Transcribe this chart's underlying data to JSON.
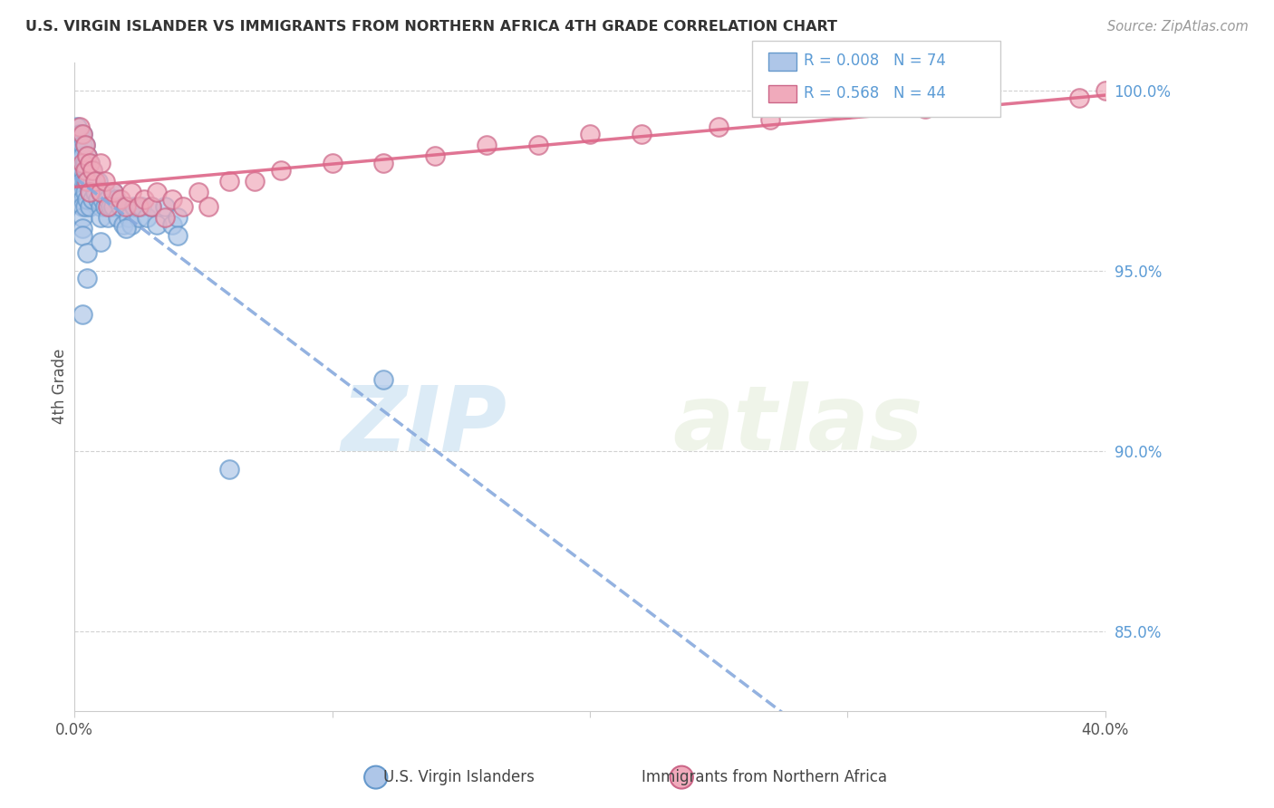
{
  "title": "U.S. VIRGIN ISLANDER VS IMMIGRANTS FROM NORTHERN AFRICA 4TH GRADE CORRELATION CHART",
  "source": "Source: ZipAtlas.com",
  "ylabel": "4th Grade",
  "xlim": [
    0.0,
    0.4
  ],
  "ylim": [
    0.828,
    1.008
  ],
  "yticks": [
    0.85,
    0.9,
    0.95,
    1.0
  ],
  "ytick_labels": [
    "85.0%",
    "90.0%",
    "95.0%",
    "100.0%"
  ],
  "blue_R": 0.008,
  "blue_N": 74,
  "pink_R": 0.568,
  "pink_N": 44,
  "blue_color": "#aec6e8",
  "pink_color": "#f0aabb",
  "blue_edge_color": "#6699cc",
  "pink_edge_color": "#cc6688",
  "blue_trend_color": "#88aadd",
  "pink_trend_color": "#dd6688",
  "legend_label_blue": "U.S. Virgin Islanders",
  "legend_label_pink": "Immigrants from Northern Africa",
  "blue_x": [
    0.001,
    0.001,
    0.001,
    0.002,
    0.002,
    0.002,
    0.002,
    0.002,
    0.003,
    0.003,
    0.003,
    0.003,
    0.003,
    0.003,
    0.003,
    0.003,
    0.003,
    0.003,
    0.003,
    0.004,
    0.004,
    0.004,
    0.004,
    0.004,
    0.005,
    0.005,
    0.005,
    0.005,
    0.006,
    0.006,
    0.006,
    0.006,
    0.007,
    0.007,
    0.007,
    0.008,
    0.008,
    0.009,
    0.009,
    0.01,
    0.01,
    0.01,
    0.011,
    0.012,
    0.012,
    0.013,
    0.013,
    0.014,
    0.015,
    0.015,
    0.016,
    0.017,
    0.018,
    0.019,
    0.02,
    0.021,
    0.022,
    0.023,
    0.025,
    0.026,
    0.028,
    0.03,
    0.032,
    0.035,
    0.038,
    0.04,
    0.005,
    0.01,
    0.02,
    0.04,
    0.003,
    0.005,
    0.06,
    0.12
  ],
  "blue_y": [
    0.99,
    0.985,
    0.98,
    0.988,
    0.983,
    0.978,
    0.975,
    0.972,
    0.988,
    0.985,
    0.982,
    0.978,
    0.975,
    0.972,
    0.97,
    0.968,
    0.965,
    0.962,
    0.96,
    0.985,
    0.98,
    0.975,
    0.972,
    0.968,
    0.982,
    0.978,
    0.975,
    0.97,
    0.98,
    0.975,
    0.972,
    0.968,
    0.978,
    0.975,
    0.97,
    0.975,
    0.972,
    0.975,
    0.97,
    0.972,
    0.968,
    0.965,
    0.97,
    0.972,
    0.968,
    0.97,
    0.965,
    0.968,
    0.972,
    0.968,
    0.97,
    0.965,
    0.968,
    0.963,
    0.968,
    0.965,
    0.963,
    0.968,
    0.965,
    0.968,
    0.965,
    0.968,
    0.963,
    0.968,
    0.963,
    0.965,
    0.955,
    0.958,
    0.962,
    0.96,
    0.938,
    0.948,
    0.895,
    0.92
  ],
  "pink_x": [
    0.002,
    0.003,
    0.003,
    0.004,
    0.004,
    0.005,
    0.005,
    0.006,
    0.006,
    0.007,
    0.008,
    0.01,
    0.01,
    0.012,
    0.013,
    0.015,
    0.018,
    0.02,
    0.022,
    0.025,
    0.027,
    0.03,
    0.032,
    0.035,
    0.038,
    0.042,
    0.048,
    0.052,
    0.06,
    0.07,
    0.08,
    0.1,
    0.12,
    0.14,
    0.16,
    0.18,
    0.2,
    0.22,
    0.25,
    0.27,
    0.3,
    0.33,
    0.39,
    0.4
  ],
  "pink_y": [
    0.99,
    0.988,
    0.98,
    0.985,
    0.978,
    0.982,
    0.975,
    0.98,
    0.972,
    0.978,
    0.975,
    0.98,
    0.972,
    0.975,
    0.968,
    0.972,
    0.97,
    0.968,
    0.972,
    0.968,
    0.97,
    0.968,
    0.972,
    0.965,
    0.97,
    0.968,
    0.972,
    0.968,
    0.975,
    0.975,
    0.978,
    0.98,
    0.98,
    0.982,
    0.985,
    0.985,
    0.988,
    0.988,
    0.99,
    0.992,
    0.995,
    0.995,
    0.998,
    1.0
  ],
  "watermark_zip": "ZIP",
  "watermark_atlas": "atlas",
  "background_color": "#ffffff",
  "grid_color": "#cccccc",
  "spine_color": "#cccccc"
}
